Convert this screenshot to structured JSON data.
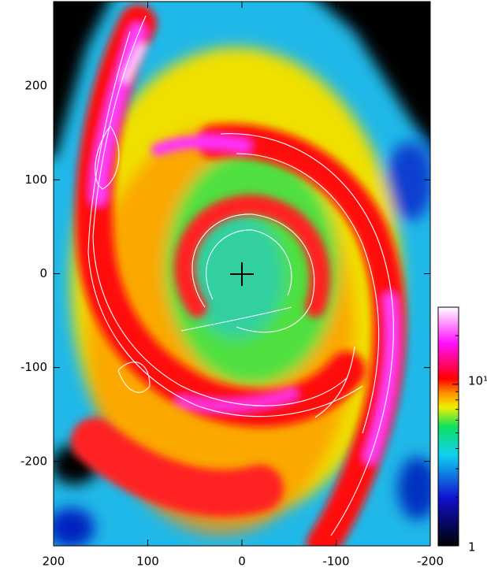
{
  "chart_data": {
    "type": "image",
    "xlim": [
      200,
      -200
    ],
    "xticks": [
      200,
      100,
      0,
      -100,
      -200
    ],
    "ylim": [
      -290,
      290
    ],
    "yticks": [
      200,
      100,
      0,
      -100,
      -200
    ],
    "colorbar": {
      "scale": "log",
      "lim": [
        1,
        30
      ],
      "ticks": [
        1,
        {
          "value": 10,
          "label": "10¹"
        }
      ],
      "minor_ticks": [
        2,
        3,
        4,
        5,
        6,
        7,
        8,
        9,
        20
      ]
    }
  }
}
